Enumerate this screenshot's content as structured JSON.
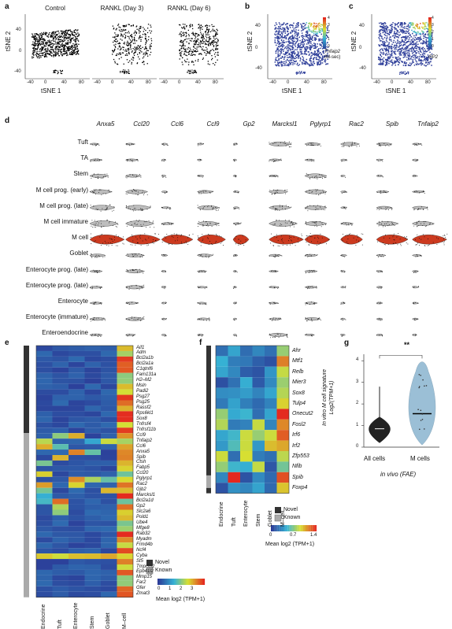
{
  "colors": {
    "heat_low": "#2b3a97",
    "heat_mid": "#36b3d5",
    "heat_mid2": "#d8df31",
    "heat_high": "#e4281f",
    "violin_grey": "#bdbdbd",
    "violin_red": "#cc3a1f",
    "novel": "#333333",
    "known": "#aaaaaa",
    "violin_blue": "#9bbfd6"
  },
  "panel_labels": {
    "a": "a",
    "b": "b",
    "c": "c",
    "d": "d",
    "e": "e",
    "f": "f",
    "g": "g"
  },
  "panel_a": {
    "titles": [
      "Control",
      "RANKL (Day 3)",
      "RANKL (Day 6)"
    ],
    "xlabel": "tSNE 1",
    "ylabel": "tSNE 2",
    "xticks": [
      "-40",
      "0",
      "40",
      "80"
    ],
    "yticks": [
      "40",
      "0",
      "-40"
    ]
  },
  "panel_b": {
    "xlabel": "tSNE 1",
    "ylabel": "tSNE 2",
    "legend_gene": "Tnfaip2",
    "legend_sub": "(M-sec)",
    "legend_ticks": [
      "4",
      "3",
      "2",
      "1",
      "0"
    ],
    "xticks": [
      "-40",
      "0",
      "40",
      "80"
    ],
    "yticks": [
      "40",
      "0",
      "-40"
    ]
  },
  "panel_c": {
    "xlabel": "tSNE 1",
    "ylabel": "tSNE 2",
    "legend_gene": "GP2",
    "legend_ticks": [
      "4",
      "3",
      "2",
      "1",
      "0"
    ],
    "xticks": [
      "-40",
      "0",
      "40",
      "80"
    ],
    "yticks": [
      "40",
      "0",
      "-40"
    ]
  },
  "panel_d": {
    "genes": [
      "Anxa5",
      "Ccl20",
      "Ccl6",
      "Ccl9",
      "Gp2",
      "Marcksl1",
      "Pglyrp1",
      "Rac2",
      "Spib",
      "Tnfaip2"
    ],
    "cell_types": [
      "Tuft",
      "TA",
      "Stem",
      "M cell prog. (early)",
      "M cell prog. (late)",
      "M cell immature",
      "M cell",
      "Goblet",
      "Enterocyte prog. (late)",
      "Enterocyte prog. (late)",
      "Enterocyte",
      "Enterocyte (immature)",
      "Enteroendocrine"
    ]
  },
  "panel_e": {
    "genes": [
      "Aif1",
      "Adm",
      "Bcl2a1b",
      "Bcl2a1a",
      "C1qtnf6",
      "Fam131a",
      "H2–M2",
      "Msln",
      "Padi2",
      "Psg27",
      "Psg25",
      "Rassf2",
      "Rps6kl1",
      "Sox8",
      "Tnfrsf4",
      "Tnfrsf11b",
      "Ccl9",
      "Tnfaip2",
      "Ccl6",
      "Anxa5",
      "Spib",
      "Ctsh",
      "Fabp5",
      "Ccl20",
      "Pglyrp1",
      "Rac2",
      "Gjb2",
      "Marcksl1",
      "Bcl2a1d",
      "Gp2",
      "Slc2a6",
      "Pold1",
      "Ube4",
      "Mfge8",
      "Rab32",
      "Myadm",
      "Frmd4b",
      "Ncf4",
      "Cyba",
      "St5",
      "Tmprss2",
      "Epb41l2",
      "Mmp15",
      "Far2",
      "Gfer",
      "Zmat3"
    ],
    "columns": [
      "Endocrine",
      "Tuft",
      "Enterocyte",
      "Stem",
      "Goblet",
      "M–cell"
    ],
    "legend_items": [
      "Novel",
      "Known"
    ],
    "colorbar_label": "Mean log2 (TPM+1)",
    "colorbar_ticks": [
      "0",
      "1",
      "2",
      "3"
    ]
  },
  "panel_f": {
    "genes": [
      "Ahr",
      "Mtf1",
      "Relb",
      "Mier3",
      "Sox8",
      "Tulp4",
      "Onecut2",
      "Fosl2",
      "Irf6",
      "Irf2",
      "Zfp553",
      "Nfib",
      "Spib",
      "Foxp4"
    ],
    "columns": [
      "Endocrine",
      "Tuft",
      "Enterocyte",
      "Stem",
      "Goblet",
      "M–cell"
    ],
    "legend_items": [
      "Novel",
      "Known"
    ],
    "colorbar_label": "Mean log2 (TPM+1)",
    "colorbar_ticks": [
      "0",
      "0.7",
      "1.4"
    ]
  },
  "chart_data": {
    "type": "violin",
    "categories": [
      "All cells",
      "M cells"
    ],
    "ylabel": "In vitro M cell signature Log2(TPM+1)",
    "xlabel": "in vivo (FAE)",
    "significance": "**",
    "ylim": [
      0,
      4.3
    ],
    "yticks": [
      "0",
      "1",
      "2",
      "3",
      "4"
    ],
    "medians": [
      0.85,
      1.55
    ]
  }
}
